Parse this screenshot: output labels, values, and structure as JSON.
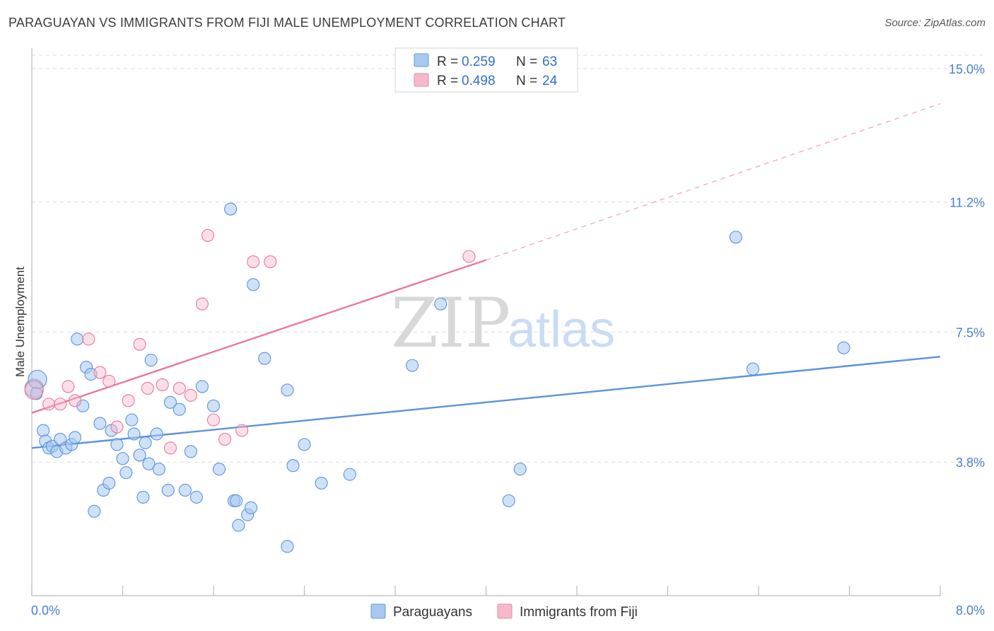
{
  "header": {
    "title": "PARAGUAYAN VS IMMIGRANTS FROM FIJI MALE UNEMPLOYMENT CORRELATION CHART",
    "source": "Source: ZipAtlas.com"
  },
  "watermark": {
    "zip": "ZIP",
    "atlas": "atlas"
  },
  "legend": {
    "rows": [
      {
        "r_label": "R =",
        "r_value": "0.259",
        "n_label": "N =",
        "n_value": "63",
        "color": "#a8c8f0"
      },
      {
        "r_label": "R =",
        "r_value": "0.498",
        "n_label": "N =",
        "n_value": "24",
        "color": "#f6b8cb"
      }
    ]
  },
  "bottom_legend": [
    {
      "label": "Paraguayans",
      "color": "#a8c8f0"
    },
    {
      "label": "Immigrants from Fiji",
      "color": "#f6b8cb"
    }
  ],
  "chart_data": {
    "type": "scatter",
    "title": "PARAGUAYAN VS IMMIGRANTS FROM FIJI MALE UNEMPLOYMENT CORRELATION CHART",
    "xlabel": "",
    "ylabel": "Male Unemployment",
    "xlim": [
      0,
      8.0
    ],
    "ylim": [
      0,
      15.5
    ],
    "x_tick_labels": [
      "0.0%",
      "8.0%"
    ],
    "y_ticks": [
      3.8,
      7.5,
      11.2,
      15.0
    ],
    "y_tick_labels": [
      "3.8%",
      "7.5%",
      "11.2%",
      "15.0%"
    ],
    "grid": true,
    "legend_position": "top-center",
    "series": [
      {
        "name": "Paraguayans",
        "color": "#5b93db",
        "fill": "#a8c8f0",
        "trend": {
          "x": [
            0.0,
            8.0
          ],
          "y": [
            4.2,
            6.8
          ]
        },
        "points": [
          [
            0.02,
            5.9
          ],
          [
            0.05,
            6.15
          ],
          [
            0.1,
            4.7
          ],
          [
            0.12,
            4.4
          ],
          [
            0.15,
            4.2
          ],
          [
            0.18,
            4.25
          ],
          [
            0.22,
            4.1
          ],
          [
            0.25,
            4.45
          ],
          [
            0.3,
            4.2
          ],
          [
            0.35,
            4.3
          ],
          [
            0.38,
            4.5
          ],
          [
            0.4,
            7.3
          ],
          [
            0.45,
            5.4
          ],
          [
            0.48,
            6.5
          ],
          [
            0.52,
            6.3
          ],
          [
            0.55,
            2.4
          ],
          [
            0.6,
            4.9
          ],
          [
            0.63,
            3.0
          ],
          [
            0.68,
            3.2
          ],
          [
            0.7,
            4.7
          ],
          [
            0.75,
            4.3
          ],
          [
            0.8,
            3.9
          ],
          [
            0.83,
            3.5
          ],
          [
            0.88,
            5.0
          ],
          [
            0.9,
            4.6
          ],
          [
            0.95,
            4.0
          ],
          [
            0.98,
            2.8
          ],
          [
            1.0,
            4.35
          ],
          [
            1.03,
            3.75
          ],
          [
            1.05,
            6.7
          ],
          [
            1.1,
            4.6
          ],
          [
            1.12,
            3.6
          ],
          [
            1.2,
            3.0
          ],
          [
            1.22,
            5.5
          ],
          [
            1.3,
            5.3
          ],
          [
            1.35,
            3.0
          ],
          [
            1.4,
            4.1
          ],
          [
            1.45,
            2.8
          ],
          [
            1.5,
            5.95
          ],
          [
            1.6,
            5.4
          ],
          [
            1.65,
            3.6
          ],
          [
            1.75,
            11.0
          ],
          [
            1.78,
            2.7
          ],
          [
            1.8,
            2.7
          ],
          [
            1.82,
            2.0
          ],
          [
            1.9,
            2.3
          ],
          [
            1.93,
            2.5
          ],
          [
            1.95,
            8.85
          ],
          [
            2.05,
            6.75
          ],
          [
            2.25,
            1.4
          ],
          [
            2.25,
            5.85
          ],
          [
            2.3,
            3.7
          ],
          [
            2.4,
            4.3
          ],
          [
            2.55,
            3.2
          ],
          [
            2.8,
            3.45
          ],
          [
            3.35,
            6.55
          ],
          [
            3.6,
            8.3
          ],
          [
            4.2,
            2.7
          ],
          [
            4.3,
            3.6
          ],
          [
            6.2,
            10.2
          ],
          [
            6.35,
            6.45
          ],
          [
            7.15,
            7.05
          ],
          [
            0.04,
            5.75
          ]
        ]
      },
      {
        "name": "Immigrants from Fiji",
        "color": "#e8789d",
        "fill": "#f6b8cb",
        "trend": {
          "x": [
            0.0,
            4.0
          ],
          "y": [
            5.2,
            9.55
          ]
        },
        "trend_ext": {
          "x": [
            4.0,
            8.0
          ],
          "y": [
            9.55,
            14.0
          ]
        },
        "points": [
          [
            0.02,
            5.85
          ],
          [
            0.15,
            5.45
          ],
          [
            0.25,
            5.45
          ],
          [
            0.32,
            5.95
          ],
          [
            0.38,
            5.55
          ],
          [
            0.5,
            7.3
          ],
          [
            0.6,
            6.35
          ],
          [
            0.68,
            6.1
          ],
          [
            0.75,
            4.8
          ],
          [
            0.85,
            5.55
          ],
          [
            0.95,
            7.15
          ],
          [
            1.02,
            5.9
          ],
          [
            1.15,
            6.0
          ],
          [
            1.22,
            4.2
          ],
          [
            1.3,
            5.9
          ],
          [
            1.4,
            5.7
          ],
          [
            1.5,
            8.3
          ],
          [
            1.55,
            10.25
          ],
          [
            1.6,
            5.0
          ],
          [
            1.7,
            4.45
          ],
          [
            1.85,
            4.7
          ],
          [
            1.95,
            9.5
          ],
          [
            2.1,
            9.5
          ],
          [
            3.85,
            9.65
          ]
        ]
      }
    ]
  }
}
